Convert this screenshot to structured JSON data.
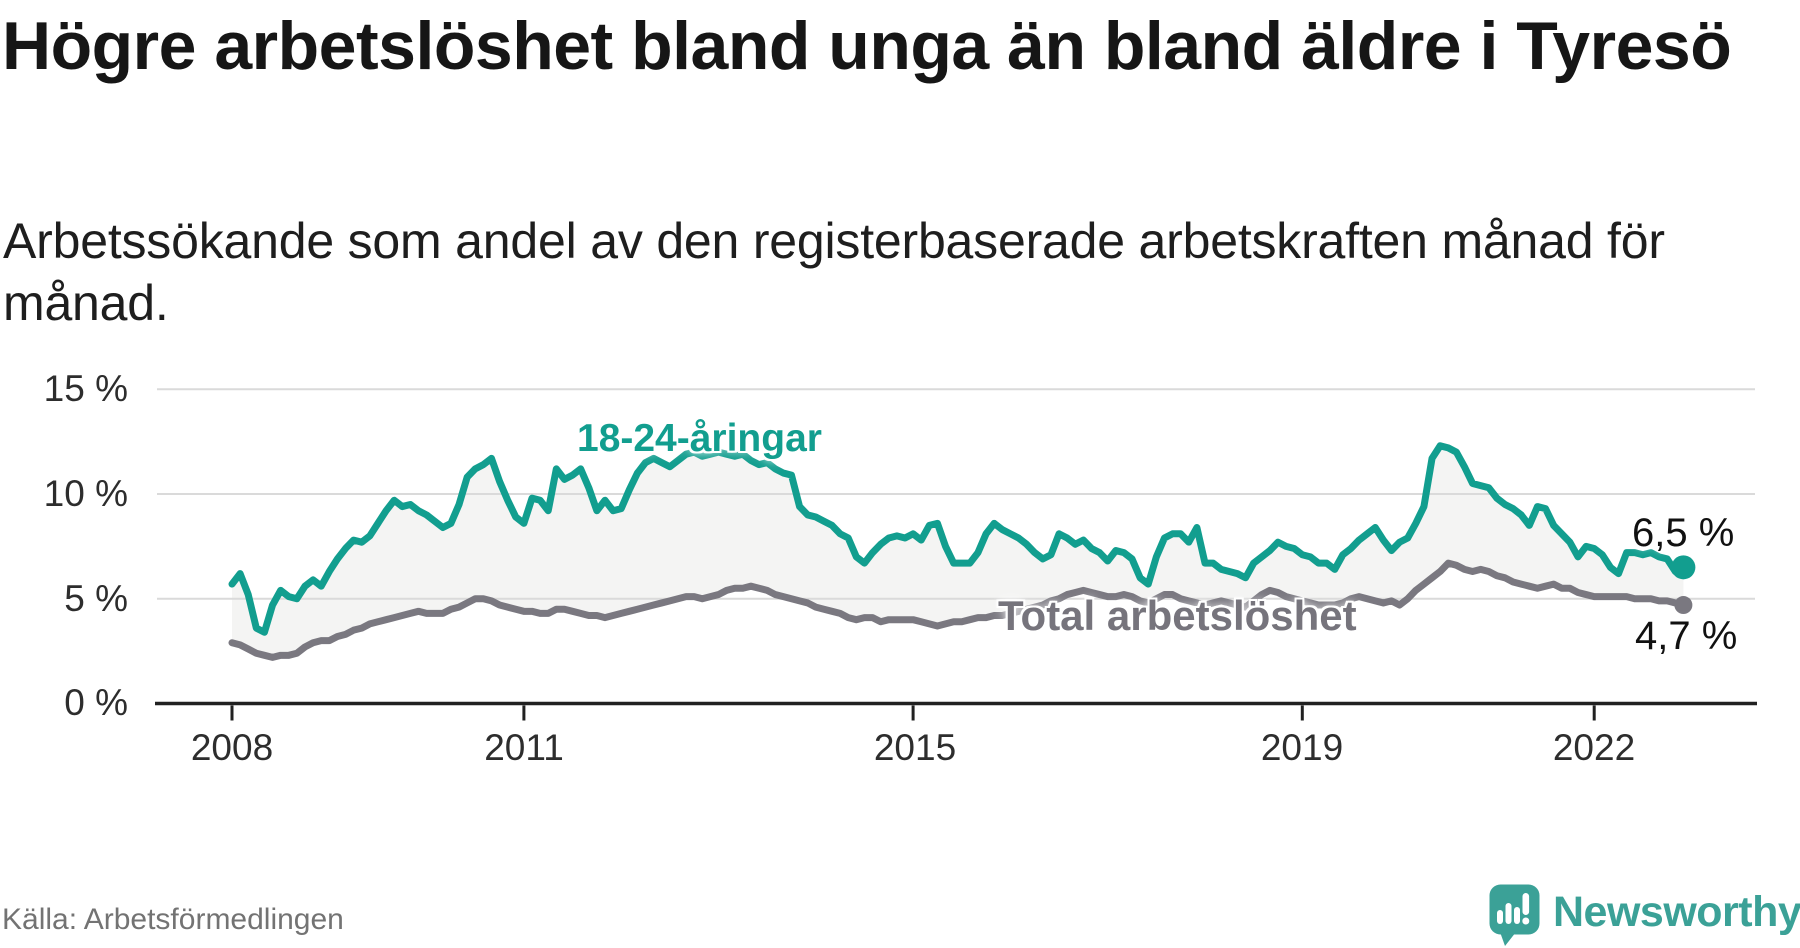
{
  "header": {
    "title": "Högre arbetslöshet bland unga än bland äldre i Tyresö",
    "subtitle": "Arbetssökande som andel av den registerbaserade arbetskraften månad för månad."
  },
  "chart": {
    "y_tick_labels": [
      "15 %",
      "10 %",
      "5 %",
      "0 %"
    ],
    "x_tick_labels": [
      "2008",
      "2011",
      "2015",
      "2019",
      "2022"
    ],
    "young_label": "18-24-åringar",
    "total_label": "Total arbetslöshet",
    "young_end_label": "6,5 %",
    "total_end_label": "4,7 %"
  },
  "chart_data": {
    "type": "line",
    "title": "Högre arbetslöshet bland unga än bland äldre i Tyresö",
    "x_frequency": "monthly",
    "x_start": "2008-01",
    "x_end": "2022-12",
    "x_tick_years": [
      2008,
      2011,
      2015,
      2019,
      2022
    ],
    "ylim": [
      0,
      15
    ],
    "y_ticks": [
      0,
      5,
      10,
      15
    ],
    "y_unit": "%",
    "grid": "horizontal",
    "area_between_series": true,
    "colors": {
      "young": "#129e8f",
      "total": "#7a7880",
      "area_fill": "#f4f4f3",
      "gridline": "#dadada",
      "axis": "#212121",
      "brand_teal": "#3ba197"
    },
    "series": [
      {
        "name": "18-24-åringar",
        "color": "#129e8f",
        "end_value": 6.5,
        "end_label": "6,5 %",
        "values": [
          5.7,
          6.2,
          5.2,
          3.6,
          3.4,
          4.7,
          5.4,
          5.1,
          5.0,
          5.6,
          5.9,
          5.6,
          6.3,
          6.9,
          7.4,
          7.8,
          7.7,
          8.0,
          8.6,
          9.2,
          9.7,
          9.4,
          9.5,
          9.2,
          9.0,
          8.7,
          8.4,
          8.6,
          9.5,
          10.8,
          11.2,
          11.4,
          11.7,
          10.6,
          9.7,
          8.9,
          8.6,
          9.8,
          9.7,
          9.2,
          11.2,
          10.7,
          10.9,
          11.2,
          10.3,
          9.2,
          9.7,
          9.2,
          9.3,
          10.2,
          11.0,
          11.5,
          11.7,
          11.5,
          11.3,
          11.6,
          11.9,
          12.0,
          11.8,
          11.9,
          12.0,
          11.9,
          11.8,
          11.9,
          11.6,
          11.4,
          11.5,
          11.2,
          11.0,
          10.9,
          9.4,
          9.0,
          8.9,
          8.7,
          8.5,
          8.1,
          7.9,
          7.0,
          6.7,
          7.2,
          7.6,
          7.9,
          8.0,
          7.9,
          8.1,
          7.8,
          8.5,
          8.6,
          7.5,
          6.7,
          6.7,
          6.7,
          7.2,
          8.1,
          8.6,
          8.3,
          8.1,
          7.9,
          7.6,
          7.2,
          6.9,
          7.1,
          8.1,
          7.9,
          7.6,
          7.8,
          7.4,
          7.2,
          6.8,
          7.3,
          7.2,
          6.9,
          6.0,
          5.7,
          7.0,
          7.9,
          8.1,
          8.1,
          7.7,
          8.4,
          6.7,
          6.7,
          6.4,
          6.3,
          6.2,
          6.0,
          6.7,
          7.0,
          7.3,
          7.7,
          7.5,
          7.4,
          7.1,
          7.0,
          6.7,
          6.7,
          6.4,
          7.1,
          7.4,
          7.8,
          8.1,
          8.4,
          7.8,
          7.3,
          7.7,
          7.9,
          8.6,
          9.4,
          11.7,
          12.3,
          12.2,
          12.0,
          11.3,
          10.5,
          10.4,
          10.3,
          9.8,
          9.5,
          9.3,
          9.0,
          8.5,
          9.4,
          9.3,
          8.5,
          8.1,
          7.7,
          7.0,
          7.5,
          7.4,
          7.1,
          6.5,
          6.2,
          7.2,
          7.2,
          7.1,
          7.2,
          7.0,
          6.9,
          6.3,
          6.5
        ]
      },
      {
        "name": "Total arbetslöshet",
        "color": "#7a7880",
        "end_value": 4.7,
        "end_label": "4,7 %",
        "values": [
          2.9,
          2.8,
          2.6,
          2.4,
          2.3,
          2.2,
          2.3,
          2.3,
          2.4,
          2.7,
          2.9,
          3.0,
          3.0,
          3.2,
          3.3,
          3.5,
          3.6,
          3.8,
          3.9,
          4.0,
          4.1,
          4.2,
          4.3,
          4.4,
          4.3,
          4.3,
          4.3,
          4.5,
          4.6,
          4.8,
          5.0,
          5.0,
          4.9,
          4.7,
          4.6,
          4.5,
          4.4,
          4.4,
          4.3,
          4.3,
          4.5,
          4.5,
          4.4,
          4.3,
          4.2,
          4.2,
          4.1,
          4.2,
          4.3,
          4.4,
          4.5,
          4.6,
          4.7,
          4.8,
          4.9,
          5.0,
          5.1,
          5.1,
          5.0,
          5.1,
          5.2,
          5.4,
          5.5,
          5.5,
          5.6,
          5.5,
          5.4,
          5.2,
          5.1,
          5.0,
          4.9,
          4.8,
          4.6,
          4.5,
          4.4,
          4.3,
          4.1,
          4.0,
          4.1,
          4.1,
          3.9,
          4.0,
          4.0,
          4.0,
          4.0,
          3.9,
          3.8,
          3.7,
          3.8,
          3.9,
          3.9,
          4.0,
          4.1,
          4.1,
          4.2,
          4.2,
          4.3,
          4.4,
          4.5,
          4.6,
          4.7,
          4.9,
          5.0,
          5.2,
          5.3,
          5.4,
          5.3,
          5.2,
          5.1,
          5.1,
          5.2,
          5.1,
          4.9,
          4.8,
          5.0,
          5.2,
          5.2,
          5.0,
          4.9,
          4.8,
          4.7,
          4.8,
          4.9,
          4.8,
          4.7,
          4.6,
          4.9,
          5.2,
          5.4,
          5.3,
          5.1,
          5.0,
          4.9,
          4.8,
          4.7,
          4.7,
          4.7,
          4.8,
          5.0,
          5.1,
          5.0,
          4.9,
          4.8,
          4.9,
          4.7,
          5.0,
          5.4,
          5.7,
          6.0,
          6.3,
          6.7,
          6.6,
          6.4,
          6.3,
          6.4,
          6.3,
          6.1,
          6.0,
          5.8,
          5.7,
          5.6,
          5.5,
          5.6,
          5.7,
          5.5,
          5.5,
          5.3,
          5.2,
          5.1,
          5.1,
          5.1,
          5.1,
          5.1,
          5.0,
          5.0,
          5.0,
          4.9,
          4.9,
          4.8,
          4.7
        ]
      }
    ]
  },
  "footer": {
    "source": "Källa: Arbetsförmedlingen",
    "brand": "Newsworthy",
    "logo_icon": "speech-bubble-bar-chart-exclamation"
  }
}
